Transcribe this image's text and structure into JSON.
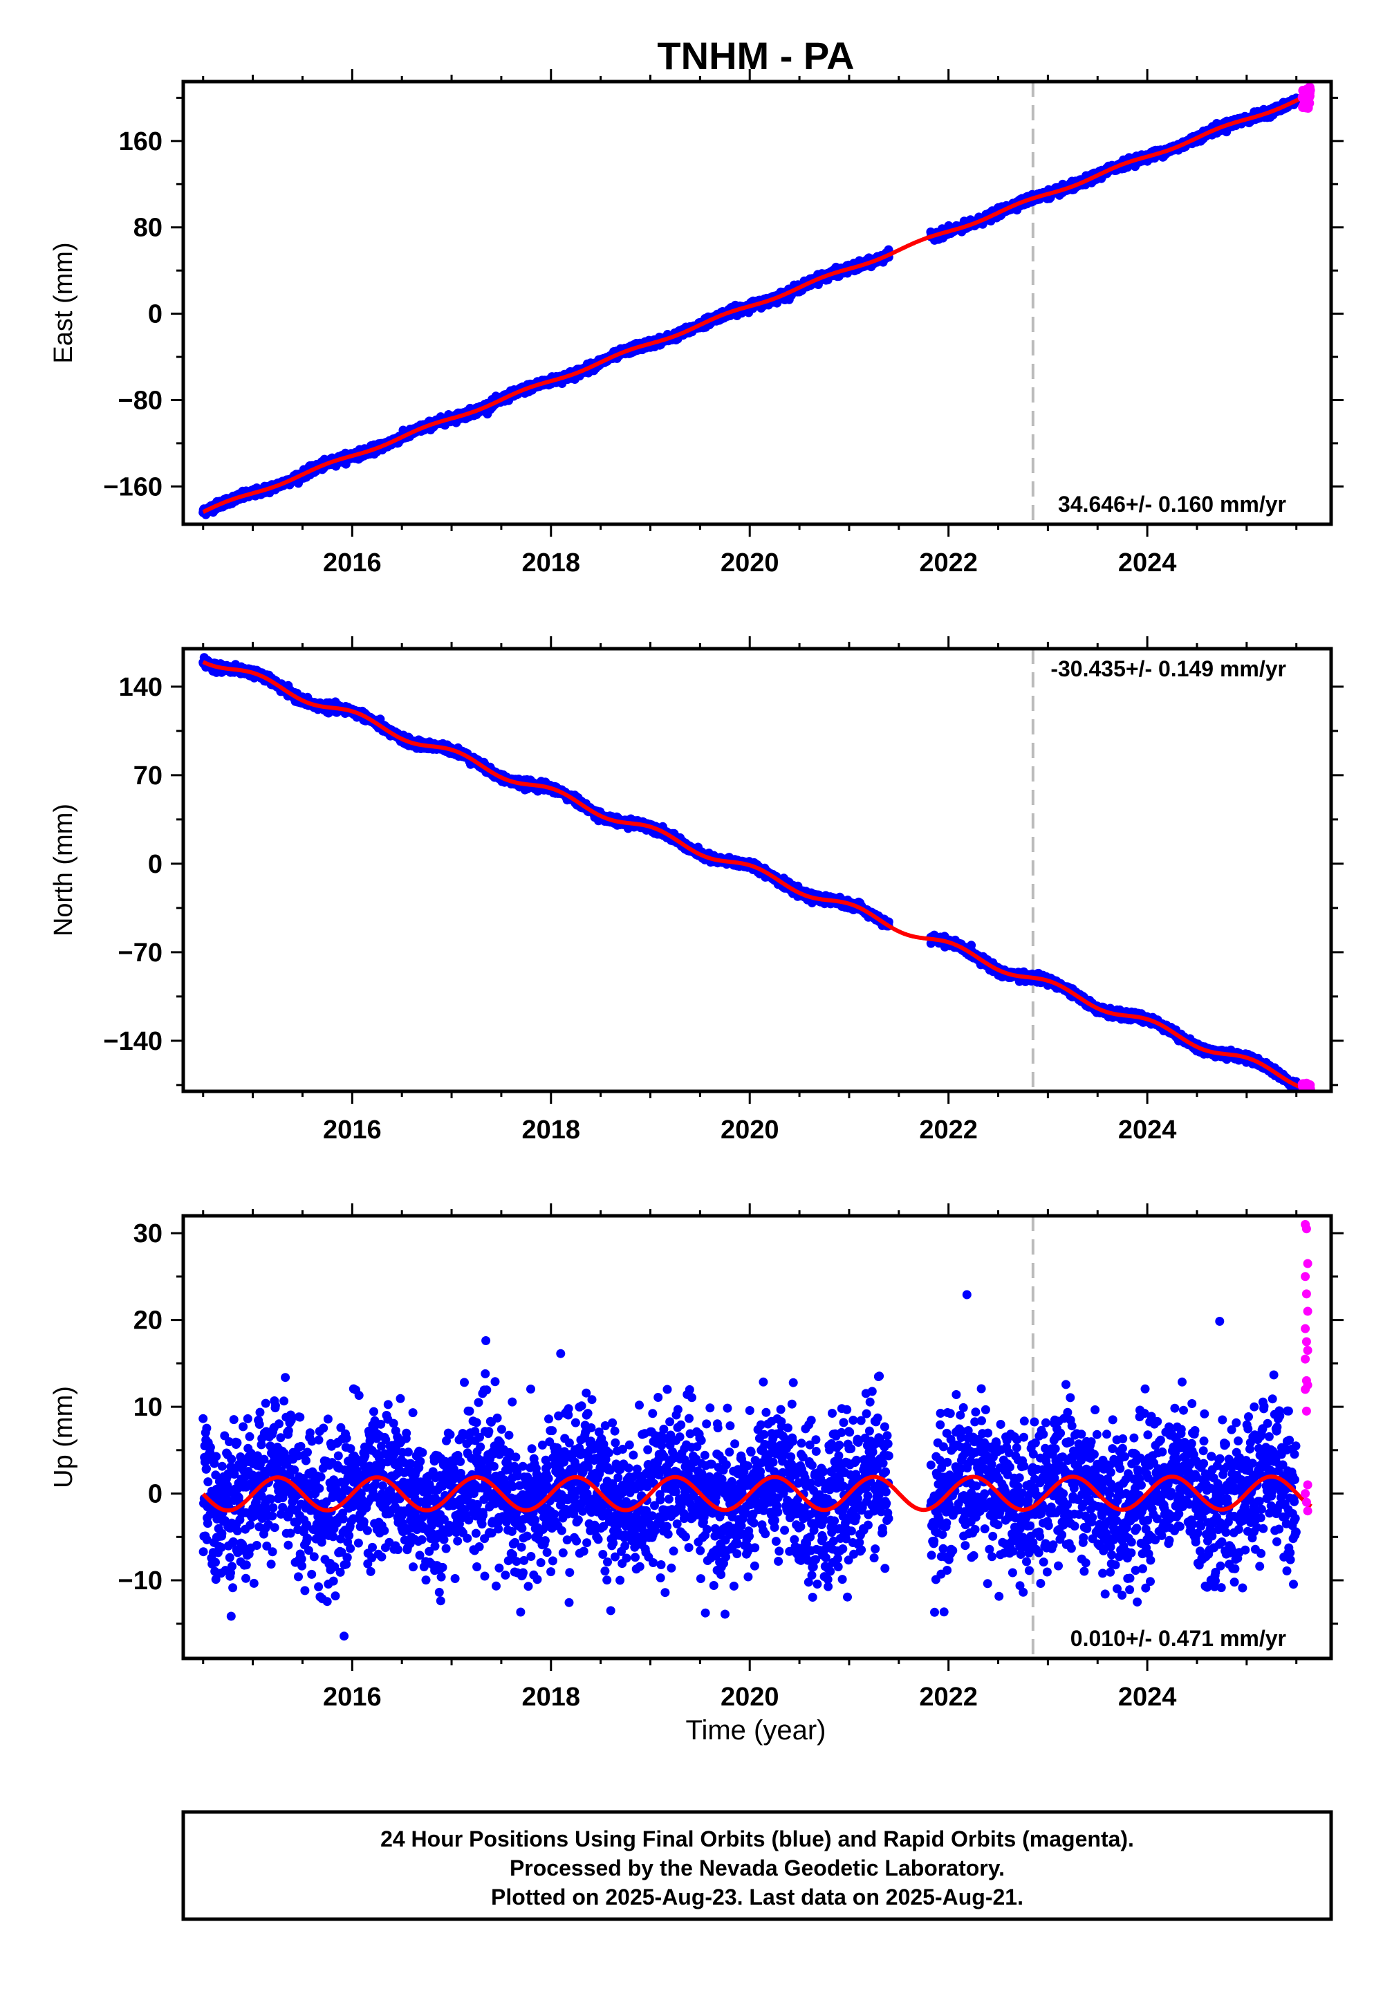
{
  "chart_data": {
    "title": "TNHM - PA",
    "type": "scatter",
    "xlabel": "Time (year)",
    "xlim": [
      2014.3,
      2025.85
    ],
    "x_ticks": [
      "2016",
      "2018",
      "2020",
      "2022",
      "2024"
    ],
    "x_tick_values": [
      2016,
      2018,
      2020,
      2022,
      2024
    ],
    "vertical_marker_year": 2022.85,
    "grid": false,
    "colors": {
      "final_orbits": "#0000ff",
      "rapid_orbits": "#ff00ff",
      "model": "#ff0000",
      "marker_line": "#bbbbbb"
    },
    "data_gap": [
      2021.4,
      2021.82
    ],
    "rapid_start": 2025.5,
    "panels": [
      {
        "ylabel": "East (mm)",
        "ylim": [
          -195,
          215
        ],
        "y_ticks": [
          "160",
          "80",
          "0",
          "−80",
          "−160"
        ],
        "y_tick_values": [
          160,
          80,
          0,
          -80,
          -160
        ],
        "rate_text": "34.646+/- 0.160 mm/yr",
        "rate_position": "bottom-right",
        "model": {
          "ref_year": 2019.8,
          "offset": 0,
          "rate": 34.646,
          "annual_amp": 1.5,
          "annual_phase": 0.5
        },
        "noise_mm": 1.8
      },
      {
        "ylabel": "North (mm)",
        "ylim": [
          -180,
          170
        ],
        "y_ticks": [
          "140",
          "70",
          "0",
          "−70",
          "−140"
        ],
        "y_tick_values": [
          140,
          70,
          0,
          -70,
          -140
        ],
        "rate_text": "-30.435+/- 0.149 mm/yr",
        "rate_position": "top-right",
        "model": {
          "ref_year": 2019.85,
          "offset": 0,
          "rate": -30.435,
          "annual_amp": 3.5,
          "annual_phase": 1.2
        },
        "noise_mm": 1.5
      },
      {
        "ylabel": "Up (mm)",
        "ylim": [
          -19,
          32
        ],
        "y_ticks": [
          "30",
          "20",
          "10",
          "0",
          "−10"
        ],
        "y_tick_values": [
          30,
          20,
          10,
          0,
          -10
        ],
        "rate_text": "0.010+/- 0.471 mm/yr",
        "rate_position": "bottom-right",
        "model": {
          "ref_year": 2019.8,
          "offset": 0,
          "rate": 0.01,
          "annual_amp": 1.9,
          "annual_phase": 0.0
        },
        "noise_mm": 4.2,
        "rapid_values_mm": [
          31,
          30.5,
          26.5,
          25,
          23,
          21,
          19,
          17.5,
          16.5,
          15.5,
          13,
          12.5,
          12,
          9.5,
          1,
          0,
          -1,
          -2
        ]
      }
    ],
    "footer": [
      "24 Hour Positions Using Final Orbits (blue) and Rapid Orbits (magenta).",
      "Processed by the Nevada Geodetic Laboratory.",
      "Plotted on 2025-Aug-23. Last data on 2025-Aug-21."
    ]
  }
}
